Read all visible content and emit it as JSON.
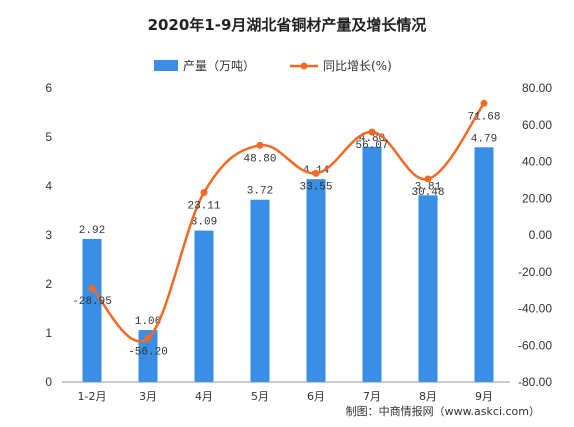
{
  "chart_data": {
    "type": "bar",
    "title": "2020年1-9月湖北省铜材产量及增长情况",
    "categories": [
      "1-2月",
      "3月",
      "4月",
      "5月",
      "6月",
      "7月",
      "8月",
      "9月"
    ],
    "series": [
      {
        "name": "产量（万吨）",
        "type": "bar",
        "axis": "left",
        "values": [
          2.92,
          1.06,
          3.09,
          3.72,
          4.14,
          4.8,
          3.81,
          4.79
        ],
        "labels": [
          "2.92",
          "1.06",
          "3.09",
          "3.72",
          "4.14",
          "4.80",
          "3.81",
          "4.79"
        ]
      },
      {
        "name": "同比增长(%)",
        "type": "line",
        "axis": "right",
        "smooth": true,
        "values": [
          -28.95,
          -56.2,
          23.11,
          48.8,
          33.55,
          56.07,
          30.48,
          71.68
        ],
        "labels": [
          "-28.95",
          "-56.20",
          "23.11",
          "48.80",
          "33.55",
          "56.07",
          "30.48",
          "71.68"
        ]
      }
    ],
    "y_left": {
      "min": 0,
      "max": 6,
      "ticks": [
        "0",
        "1",
        "2",
        "3",
        "4",
        "5",
        "6"
      ]
    },
    "y_right": {
      "min": -80,
      "max": 80,
      "ticks": [
        "-80.00",
        "-60.00",
        "-40.00",
        "-20.00",
        "0.00",
        "20.00",
        "40.00",
        "60.00",
        "80.00"
      ]
    },
    "grid": false,
    "legend_position": "top-center",
    "colors": {
      "bar": "#3a8ee6",
      "line": "#f06a24"
    },
    "source": "制图：中商情报网（www.askci.com）"
  }
}
